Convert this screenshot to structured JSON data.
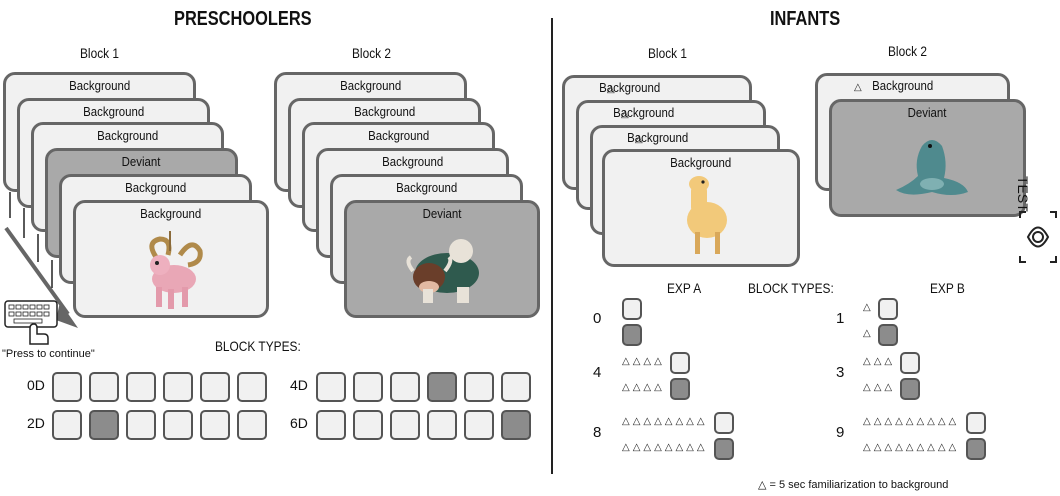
{
  "preschoolers": {
    "title": "PRESCHOOLERS",
    "block1_label": "Block 1",
    "block2_label": "Block 2",
    "block1_cards": [
      "Background",
      "Background",
      "Background",
      "Deviant",
      "Background",
      "Background"
    ],
    "block2_cards": [
      "Background",
      "Background",
      "Background",
      "Background",
      "Background",
      "Deviant"
    ],
    "press_label": "\"Press to continue\"",
    "block_types_label": "BLOCK TYPES:",
    "rows": [
      {
        "label": "0D",
        "deviant_index": -1
      },
      {
        "label": "2D",
        "deviant_index": 1
      },
      {
        "label": "4D",
        "deviant_index": 3
      },
      {
        "label": "6D",
        "deviant_index": 5
      }
    ]
  },
  "infants": {
    "title": "INFANTS",
    "block1_label": "Block 1",
    "block2_label": "Block 2",
    "block1_cards": [
      "Background",
      "Background",
      "Background",
      "Background"
    ],
    "block2_cards": [
      "Background",
      "Deviant"
    ],
    "test_label": "TEST",
    "exp_a_label": "EXP A",
    "exp_b_label": "EXP B",
    "block_types_label": "BLOCK TYPES:",
    "exp_a_rows": [
      {
        "label": "0",
        "triangles": 0
      },
      {
        "label": "4",
        "triangles": 4
      },
      {
        "label": "8",
        "triangles": 8
      }
    ],
    "exp_b_rows": [
      {
        "label": "1",
        "triangles": 1
      },
      {
        "label": "3",
        "triangles": 3
      },
      {
        "label": "9",
        "triangles": 9
      }
    ],
    "legend_symbol": "△",
    "legend_text": "= 5 sec familiarization to background"
  },
  "colors": {
    "card_bg": "#f1f1f1",
    "deviant_bg": "#a9a9a9",
    "border": "#666666",
    "dark_square": "#8c8c8c"
  }
}
